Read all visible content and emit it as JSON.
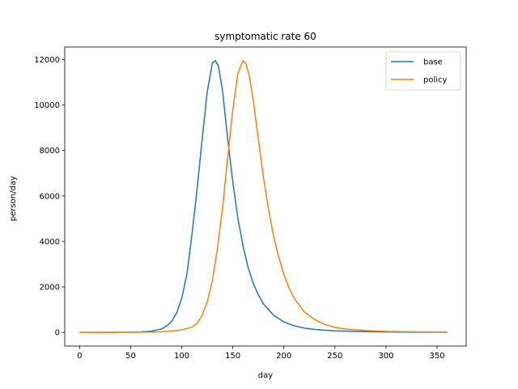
{
  "chart_data": {
    "type": "line",
    "title": "symptomatic rate 60",
    "xlabel": "day",
    "ylabel": "person/day",
    "xlim": [
      -14.55,
      378.5
    ],
    "ylim": [
      -600,
      12550
    ],
    "xticks": [
      0,
      50,
      100,
      150,
      200,
      250,
      300,
      350
    ],
    "yticks": [
      0,
      2000,
      4000,
      6000,
      8000,
      10000,
      12000
    ],
    "grid": false,
    "legend_position": "top-right",
    "series": [
      {
        "name": "base",
        "color": "#1f77b4",
        "points": [
          [
            0,
            0
          ],
          [
            20,
            2
          ],
          [
            40,
            5
          ],
          [
            50,
            10
          ],
          [
            60,
            25
          ],
          [
            70,
            55
          ],
          [
            80,
            150
          ],
          [
            85,
            270
          ],
          [
            90,
            480
          ],
          [
            95,
            850
          ],
          [
            100,
            1500
          ],
          [
            105,
            2550
          ],
          [
            110,
            4300
          ],
          [
            115,
            6300
          ],
          [
            120,
            8500
          ],
          [
            125,
            10600
          ],
          [
            130,
            11850
          ],
          [
            133,
            11950
          ],
          [
            136,
            11700
          ],
          [
            140,
            10600
          ],
          [
            145,
            8500
          ],
          [
            150,
            6600
          ],
          [
            155,
            5000
          ],
          [
            160,
            3800
          ],
          [
            165,
            2850
          ],
          [
            170,
            2150
          ],
          [
            175,
            1650
          ],
          [
            180,
            1250
          ],
          [
            190,
            750
          ],
          [
            200,
            460
          ],
          [
            210,
            290
          ],
          [
            220,
            190
          ],
          [
            230,
            130
          ],
          [
            250,
            70
          ],
          [
            270,
            40
          ],
          [
            300,
            20
          ],
          [
            330,
            10
          ],
          [
            360,
            8
          ]
        ]
      },
      {
        "name": "policy",
        "color": "#ff7f0e",
        "points": [
          [
            0,
            0
          ],
          [
            30,
            2
          ],
          [
            50,
            5
          ],
          [
            70,
            15
          ],
          [
            80,
            30
          ],
          [
            90,
            60
          ],
          [
            100,
            110
          ],
          [
            110,
            230
          ],
          [
            115,
            400
          ],
          [
            120,
            750
          ],
          [
            125,
            1350
          ],
          [
            130,
            2300
          ],
          [
            135,
            3700
          ],
          [
            140,
            5500
          ],
          [
            145,
            7700
          ],
          [
            150,
            9800
          ],
          [
            155,
            11400
          ],
          [
            160,
            11950
          ],
          [
            163,
            11800
          ],
          [
            166,
            11300
          ],
          [
            170,
            10200
          ],
          [
            175,
            8500
          ],
          [
            180,
            6800
          ],
          [
            185,
            5400
          ],
          [
            190,
            4200
          ],
          [
            195,
            3300
          ],
          [
            200,
            2550
          ],
          [
            205,
            1950
          ],
          [
            210,
            1500
          ],
          [
            220,
            900
          ],
          [
            230,
            560
          ],
          [
            240,
            350
          ],
          [
            250,
            220
          ],
          [
            260,
            150
          ],
          [
            280,
            80
          ],
          [
            300,
            45
          ],
          [
            330,
            25
          ],
          [
            360,
            15
          ]
        ]
      }
    ]
  }
}
